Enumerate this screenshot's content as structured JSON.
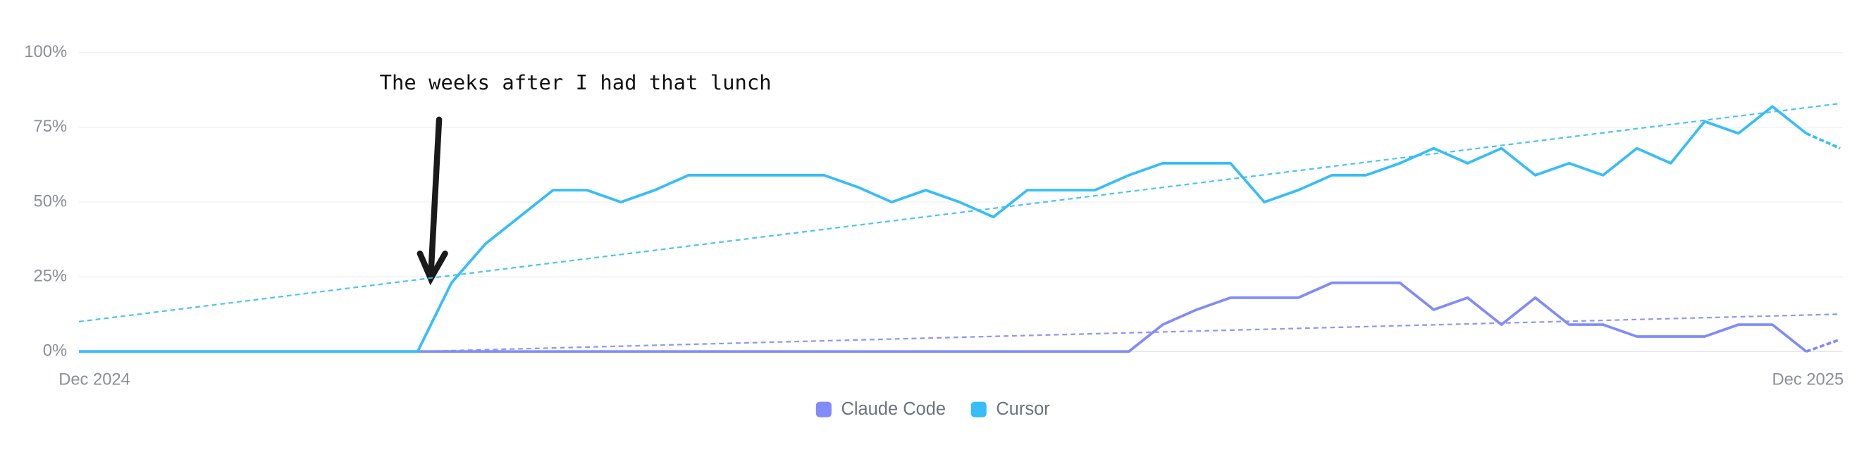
{
  "chart_data": {
    "type": "line",
    "categories": [
      "Dec 2024",
      null,
      null,
      null,
      null,
      null,
      null,
      null,
      null,
      null,
      null,
      null,
      null,
      null,
      null,
      null,
      null,
      null,
      null,
      null,
      null,
      null,
      null,
      null,
      null,
      null,
      null,
      null,
      null,
      null,
      null,
      null,
      null,
      null,
      null,
      null,
      null,
      null,
      null,
      null,
      null,
      null,
      null,
      null,
      null,
      null,
      null,
      null,
      null,
      null,
      null,
      null,
      "Dec 2025"
    ],
    "series": [
      {
        "name": "Claude Code",
        "color": "#818cf8",
        "values": [
          0,
          0,
          0,
          0,
          0,
          0,
          0,
          0,
          0,
          0,
          0,
          0,
          0,
          0,
          0,
          0,
          0,
          0,
          0,
          0,
          0,
          0,
          0,
          0,
          0,
          0,
          0,
          0,
          0,
          0,
          0,
          0,
          9,
          14,
          18,
          18,
          18,
          23,
          23,
          23,
          14,
          18,
          9,
          18,
          9,
          9,
          5,
          5,
          5,
          9,
          9,
          0,
          4
        ],
        "trend": [
          {
            "index": 10,
            "value": 0
          },
          {
            "index": 52,
            "value": 12.5
          }
        ]
      },
      {
        "name": "Cursor",
        "color": "#38bdf8",
        "values": [
          0,
          0,
          0,
          0,
          0,
          0,
          0,
          0,
          0,
          0,
          0,
          23,
          36,
          45,
          54,
          54,
          50,
          54,
          59,
          59,
          59,
          59,
          59,
          55,
          50,
          54,
          50,
          45,
          54,
          54,
          54,
          59,
          63,
          63,
          63,
          50,
          54,
          59,
          59,
          63,
          68,
          63,
          68,
          59,
          63,
          59,
          68,
          63,
          77,
          73,
          82,
          73,
          68
        ],
        "trend": [
          {
            "index": 0,
            "value": 10
          },
          {
            "index": 52,
            "value": 83
          }
        ]
      }
    ],
    "ylim": [
      0,
      100
    ],
    "yticks": [
      {
        "value": 0,
        "label": "0%"
      },
      {
        "value": 25,
        "label": "25%"
      },
      {
        "value": 50,
        "label": "50%"
      },
      {
        "value": 75,
        "label": "75%"
      },
      {
        "value": 100,
        "label": "100%"
      }
    ],
    "grid": true,
    "legend": "bottom",
    "last_segment_dashed": true,
    "annotation": "The weeks after I had that lunch"
  }
}
